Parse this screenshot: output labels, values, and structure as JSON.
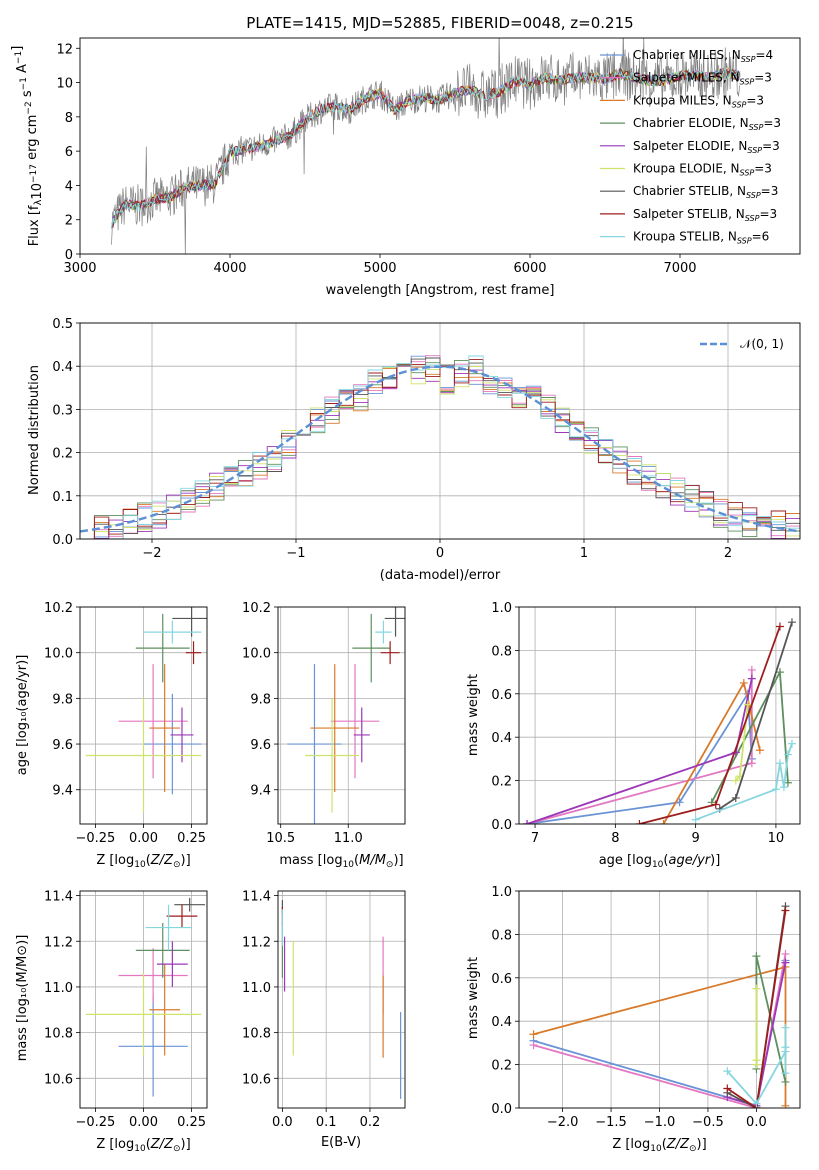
{
  "chart_data": [
    {
      "type": "line",
      "title": "PLATE=1415, MJD=52885, FIBERID=0048, z=0.215",
      "xlabel": "wavelength [Angstrom, rest frame]",
      "ylabel": "Flux [f_λ10^-17 erg cm^-2 s^-1 A^-1]",
      "xlim": [
        3000,
        7800
      ],
      "ylim": [
        0,
        12.6
      ],
      "xticks": [
        3000,
        4000,
        5000,
        6000,
        7000
      ],
      "yticks": [
        0,
        2,
        4,
        6,
        8,
        10,
        12
      ],
      "grid": false,
      "legend_position": "right",
      "legend": [
        {
          "label": "Chabrier MILES, N_SSP=4",
          "color": "#6a93d6"
        },
        {
          "label": "Salpeter MILES, N_SSP=3",
          "color": "#e377c2"
        },
        {
          "label": "Kroupa MILES, N_SSP=3",
          "color": "#d97a2b"
        },
        {
          "label": "Chabrier ELODIE, N_SSP=3",
          "color": "#5e8f5e"
        },
        {
          "label": "Salpeter ELODIE, N_SSP=3",
          "color": "#9c37b8"
        },
        {
          "label": "Kroupa ELODIE, N_SSP=3",
          "color": "#cfe36b"
        },
        {
          "label": "Chabrier STELIB, N_SSP=3",
          "color": "#555555"
        },
        {
          "label": "Salpeter STELIB, N_SSP=3",
          "color": "#9e1d1d"
        },
        {
          "label": "Kroupa STELIB, N_SSP=6",
          "color": "#86d6e0"
        }
      ],
      "data_series": {
        "name": "data",
        "color": "#808080",
        "x": [
          3210,
          3300,
          3400,
          3500,
          3600,
          3700,
          3800,
          3900,
          4000,
          4100,
          4200,
          4300,
          4400,
          4500,
          4600,
          4700,
          4800,
          4900,
          5000,
          5100,
          5200,
          5300,
          5400,
          5500,
          5600,
          5700,
          5800,
          5900,
          6000,
          6100,
          6200,
          6300,
          6400,
          6500,
          6600,
          6700,
          6800,
          6900,
          7000,
          7100,
          7200,
          7300,
          7400
        ],
        "y": [
          1.8,
          2.9,
          2.8,
          3.2,
          3.3,
          3.9,
          4.0,
          4.1,
          5.9,
          6.1,
          6.3,
          6.6,
          6.9,
          7.8,
          8.4,
          8.6,
          8.4,
          9.1,
          9.4,
          8.4,
          9.0,
          9.1,
          9.0,
          9.4,
          9.6,
          9.2,
          9.5,
          10.1,
          9.9,
          10.3,
          10.1,
          10.3,
          10.3,
          10.2,
          10.5,
          10.3,
          10.1,
          10.1,
          10.4,
          10.4,
          10.3,
          10.6,
          10.4
        ],
        "noise": 1.4
      },
      "model_curve": {
        "x": [
          3210,
          3300,
          3400,
          3500,
          3600,
          3700,
          3800,
          3900,
          4000,
          4100,
          4200,
          4300,
          4400,
          4500,
          4600,
          4700,
          4800,
          4900,
          5000,
          5100,
          5200,
          5300,
          5400,
          5500,
          5600,
          5700,
          5800,
          5900,
          6000,
          6100,
          6200,
          6300,
          6400,
          6500,
          6600,
          6700,
          6800,
          6900,
          7000,
          7100,
          7200,
          7300,
          7400
        ],
        "y": [
          1.8,
          2.9,
          2.8,
          3.2,
          3.3,
          3.9,
          4.0,
          4.1,
          5.9,
          6.1,
          6.3,
          6.6,
          6.9,
          7.8,
          8.4,
          8.6,
          8.4,
          9.1,
          9.4,
          8.4,
          9.0,
          9.1,
          9.0,
          9.4,
          9.6,
          9.2,
          9.5,
          10.1,
          9.9,
          10.3,
          10.1,
          10.3,
          10.3,
          10.2,
          10.5,
          10.3,
          10.1,
          10.1,
          10.4,
          10.4,
          10.3,
          10.6,
          10.4
        ]
      }
    },
    {
      "type": "bar",
      "xlabel": "(data-model)/error",
      "ylabel": "Normed distribution",
      "xlim": [
        -2.5,
        2.5
      ],
      "ylim": [
        0,
        0.5
      ],
      "xticks": [
        -2,
        -1,
        0,
        1,
        2
      ],
      "yticks": [
        0.0,
        0.1,
        0.2,
        0.3,
        0.4,
        0.5
      ],
      "grid": true,
      "legend_position": "top-right",
      "legend": [
        {
          "label": "𝒩(0, 1)",
          "color": "#5b8fd6"
        }
      ],
      "bin_edges_start": -2.5,
      "bin_width": 0.1,
      "histogram_mean": [
        0.02,
        0.02,
        0.03,
        0.04,
        0.05,
        0.06,
        0.07,
        0.09,
        0.1,
        0.12,
        0.14,
        0.15,
        0.17,
        0.19,
        0.22,
        0.24,
        0.28,
        0.3,
        0.32,
        0.33,
        0.36,
        0.38,
        0.4,
        0.39,
        0.4,
        0.37,
        0.38,
        0.39,
        0.37,
        0.35,
        0.32,
        0.32,
        0.3,
        0.28,
        0.24,
        0.23,
        0.2,
        0.18,
        0.16,
        0.14,
        0.12,
        0.11,
        0.09,
        0.08,
        0.06,
        0.05,
        0.04,
        0.04,
        0.03,
        0.03
      ],
      "normal_curve": {
        "name": "𝒩(0, 1)",
        "mean": 0,
        "sigma": 1
      }
    },
    {
      "type": "scatter",
      "xlabel": "Z [log10(Z/Z⊙)]",
      "ylabel": "age [log10(age/yr)]",
      "xlim": [
        -0.33,
        0.33
      ],
      "ylim": [
        9.25,
        10.2
      ],
      "xticks": [
        -0.25,
        0.0,
        0.25
      ],
      "yticks": [
        9.4,
        9.6,
        9.8,
        10.0,
        10.2
      ],
      "grid": true,
      "points": [
        {
          "color": "#6a93d6",
          "x": 0.15,
          "xerr": 0.15,
          "y": 9.6,
          "yerr": 0.22
        },
        {
          "color": "#e377c2",
          "x": 0.05,
          "xerr": 0.18,
          "y": 9.7,
          "yerr": 0.25
        },
        {
          "color": "#d97a2b",
          "x": 0.11,
          "xerr": 0.08,
          "y": 9.67,
          "yerr": 0.28
        },
        {
          "color": "#5e8f5e",
          "x": 0.1,
          "xerr": 0.14,
          "y": 10.02,
          "yerr": 0.15
        },
        {
          "color": "#9c37b8",
          "x": 0.2,
          "xerr": 0.06,
          "y": 9.64,
          "yerr": 0.12
        },
        {
          "color": "#cfe36b",
          "x": 0.0,
          "xerr": 0.3,
          "y": 9.55,
          "yerr": 0.25
        },
        {
          "color": "#555555",
          "x": 0.25,
          "xerr": 0.1,
          "y": 10.15,
          "yerr": 0.08
        },
        {
          "color": "#9e1d1d",
          "x": 0.26,
          "xerr": 0.04,
          "y": 10.0,
          "yerr": 0.05
        },
        {
          "color": "#86d6e0",
          "x": 0.15,
          "xerr": 0.15,
          "y": 10.09,
          "yerr": 0.05
        }
      ]
    },
    {
      "type": "scatter",
      "xlabel": "mass [log10(M/M⊙)]",
      "xlim": [
        10.48,
        11.42
      ],
      "ylim": [
        9.25,
        10.2
      ],
      "xticks": [
        10.5,
        11.0
      ],
      "yticks": [
        9.4,
        9.6,
        9.8,
        10.0,
        10.2
      ],
      "grid": true,
      "points": [
        {
          "color": "#6a93d6",
          "x": 10.75,
          "xerr": 0.2,
          "y": 9.6,
          "yerr": 0.35
        },
        {
          "color": "#e377c2",
          "x": 11.05,
          "xerr": 0.18,
          "y": 9.7,
          "yerr": 0.25
        },
        {
          "color": "#d97a2b",
          "x": 10.9,
          "xerr": 0.18,
          "y": 9.67,
          "yerr": 0.28
        },
        {
          "color": "#5e8f5e",
          "x": 11.17,
          "xerr": 0.14,
          "y": 10.02,
          "yerr": 0.15
        },
        {
          "color": "#9c37b8",
          "x": 11.1,
          "xerr": 0.06,
          "y": 9.64,
          "yerr": 0.12
        },
        {
          "color": "#cfe36b",
          "x": 10.88,
          "xerr": 0.2,
          "y": 9.55,
          "yerr": 0.25
        },
        {
          "color": "#555555",
          "x": 11.35,
          "xerr": 0.08,
          "y": 10.15,
          "yerr": 0.08
        },
        {
          "color": "#9e1d1d",
          "x": 11.31,
          "xerr": 0.07,
          "y": 10.0,
          "yerr": 0.05
        },
        {
          "color": "#86d6e0",
          "x": 11.26,
          "xerr": 0.06,
          "y": 10.09,
          "yerr": 0.05
        }
      ]
    },
    {
      "type": "line",
      "xlabel": "age [log10(age/yr)]",
      "ylabel": "mass weight",
      "xlim": [
        6.8,
        10.3
      ],
      "ylim": [
        0,
        1.0
      ],
      "xticks": [
        7,
        8,
        9,
        10
      ],
      "yticks": [
        0.0,
        0.2,
        0.4,
        0.6,
        0.8,
        1.0
      ],
      "grid": true,
      "series": [
        {
          "color": "#6a93d6",
          "x": [
            6.9,
            8.8,
            9.65,
            9.7
          ],
          "y": [
            0.0,
            0.1,
            0.6,
            0.3
          ]
        },
        {
          "color": "#e377c2",
          "x": [
            6.9,
            9.7,
            9.7
          ],
          "y": [
            0.0,
            0.28,
            0.71
          ]
        },
        {
          "color": "#d97a2b",
          "x": [
            8.6,
            9.6,
            9.8
          ],
          "y": [
            0.0,
            0.65,
            0.34
          ]
        },
        {
          "color": "#5e8f5e",
          "x": [
            9.2,
            10.05,
            10.15
          ],
          "y": [
            0.1,
            0.7,
            0.19
          ]
        },
        {
          "color": "#9c37b8",
          "x": [
            6.9,
            9.5,
            9.7
          ],
          "y": [
            0.0,
            0.33,
            0.67
          ]
        },
        {
          "color": "#cfe36b",
          "x": [
            9.5,
            9.55,
            9.65
          ],
          "y": [
            0.2,
            0.22,
            0.55
          ]
        },
        {
          "color": "#555555",
          "x": [
            9.3,
            9.5,
            10.2
          ],
          "y": [
            0.07,
            0.12,
            0.93
          ]
        },
        {
          "color": "#9e1d1d",
          "x": [
            8.3,
            9.25,
            10.05
          ],
          "y": [
            0.0,
            0.09,
            0.91
          ]
        },
        {
          "color": "#86d6e0",
          "x": [
            9.0,
            10.0,
            10.05,
            10.1,
            10.15,
            10.2
          ],
          "y": [
            0.02,
            0.16,
            0.28,
            0.17,
            0.32,
            0.37
          ]
        }
      ]
    },
    {
      "type": "scatter",
      "xlabel": "Z [log10(Z/Z⊙)]",
      "ylabel": "mass [log10(M/M⊙)]",
      "xlim": [
        -0.33,
        0.33
      ],
      "ylim": [
        10.47,
        11.42
      ],
      "xticks": [
        -0.25,
        0.0,
        0.25
      ],
      "yticks": [
        10.6,
        10.8,
        11.0,
        11.2,
        11.4
      ],
      "grid": true,
      "points": [
        {
          "color": "#6a93d6",
          "x": 0.05,
          "xerr": 0.18,
          "y": 10.74,
          "yerr": 0.22
        },
        {
          "color": "#e377c2",
          "x": 0.05,
          "xerr": 0.18,
          "y": 11.05,
          "yerr": 0.12
        },
        {
          "color": "#d97a2b",
          "x": 0.11,
          "xerr": 0.08,
          "y": 10.9,
          "yerr": 0.2
        },
        {
          "color": "#5e8f5e",
          "x": 0.1,
          "xerr": 0.14,
          "y": 11.16,
          "yerr": 0.12
        },
        {
          "color": "#9c37b8",
          "x": 0.15,
          "xerr": 0.08,
          "y": 11.1,
          "yerr": 0.1
        },
        {
          "color": "#cfe36b",
          "x": 0.0,
          "xerr": 0.3,
          "y": 10.88,
          "yerr": 0.18
        },
        {
          "color": "#555555",
          "x": 0.24,
          "xerr": 0.08,
          "y": 11.36,
          "yerr": 0.03
        },
        {
          "color": "#9e1d1d",
          "x": 0.2,
          "xerr": 0.08,
          "y": 11.31,
          "yerr": 0.05
        },
        {
          "color": "#86d6e0",
          "x": 0.13,
          "xerr": 0.12,
          "y": 11.26,
          "yerr": 0.1
        }
      ]
    },
    {
      "type": "scatter",
      "xlabel": "E(B-V)",
      "xlim": [
        -0.01,
        0.28
      ],
      "ylim": [
        10.47,
        11.42
      ],
      "xticks": [
        0.0,
        0.1,
        0.2
      ],
      "yticks": [
        10.6,
        10.8,
        11.0,
        11.2,
        11.4
      ],
      "grid": true,
      "points": [
        {
          "color": "#6a93d6",
          "x": 0.27,
          "y": 10.7,
          "yerr": 0.19
        },
        {
          "color": "#e377c2",
          "x": 0.23,
          "y": 11.05,
          "yerr": 0.17
        },
        {
          "color": "#d97a2b",
          "x": 0.23,
          "y": 10.87,
          "yerr": 0.18
        },
        {
          "color": "#5e8f5e",
          "x": 0.0,
          "y": 11.16,
          "yerr": 0.12
        },
        {
          "color": "#9c37b8",
          "x": 0.005,
          "y": 11.1,
          "yerr": 0.12
        },
        {
          "color": "#cfe36b",
          "x": 0.025,
          "y": 10.95,
          "yerr": 0.25
        },
        {
          "color": "#555555",
          "x": 0.0,
          "y": 11.35,
          "yerr": 0.03
        },
        {
          "color": "#9e1d1d",
          "x": 0.0,
          "y": 11.31,
          "yerr": 0.04
        },
        {
          "color": "#86d6e0",
          "x": 0.0,
          "y": 11.26,
          "yerr": 0.08
        }
      ]
    },
    {
      "type": "line",
      "xlabel": "Z [log10(Z/Z⊙)]",
      "ylabel": "mass weight",
      "xlim": [
        -2.45,
        0.45
      ],
      "ylim": [
        0,
        1.0
      ],
      "xticks": [
        -2.0,
        -1.5,
        -1.0,
        -0.5,
        0.0
      ],
      "yticks": [
        0.0,
        0.2,
        0.4,
        0.6,
        0.8,
        1.0
      ],
      "grid": true,
      "series": [
        {
          "color": "#6a93d6",
          "x": [
            -2.3,
            0.0,
            0.3
          ],
          "y": [
            0.31,
            0.01,
            0.68
          ]
        },
        {
          "color": "#e377c2",
          "x": [
            -2.3,
            0.0,
            0.3
          ],
          "y": [
            0.29,
            0.0,
            0.71
          ]
        },
        {
          "color": "#d97a2b",
          "x": [
            -2.3,
            0.3,
            0.3
          ],
          "y": [
            0.34,
            0.65,
            0.01
          ]
        },
        {
          "color": "#5e8f5e",
          "x": [
            0.0,
            0.0,
            0.3
          ],
          "y": [
            0.18,
            0.7,
            0.12
          ]
        },
        {
          "color": "#9c37b8",
          "x": [
            -0.3,
            0.0,
            0.3
          ],
          "y": [
            0.05,
            0.01,
            0.67
          ]
        },
        {
          "color": "#cfe36b",
          "x": [
            0.0,
            0.0,
            0.0
          ],
          "y": [
            0.2,
            0.55,
            0.22
          ]
        },
        {
          "color": "#555555",
          "x": [
            -0.3,
            0.0,
            0.3
          ],
          "y": [
            0.07,
            0.0,
            0.93
          ]
        },
        {
          "color": "#9e1d1d",
          "x": [
            -0.3,
            0.0,
            0.3
          ],
          "y": [
            0.09,
            0.0,
            0.91
          ]
        },
        {
          "color": "#86d6e0",
          "x": [
            -0.3,
            0.0,
            0.3,
            0.3,
            0.3,
            0.3
          ],
          "y": [
            0.17,
            0.02,
            0.26,
            0.37,
            0.28,
            0.16
          ]
        }
      ]
    }
  ]
}
